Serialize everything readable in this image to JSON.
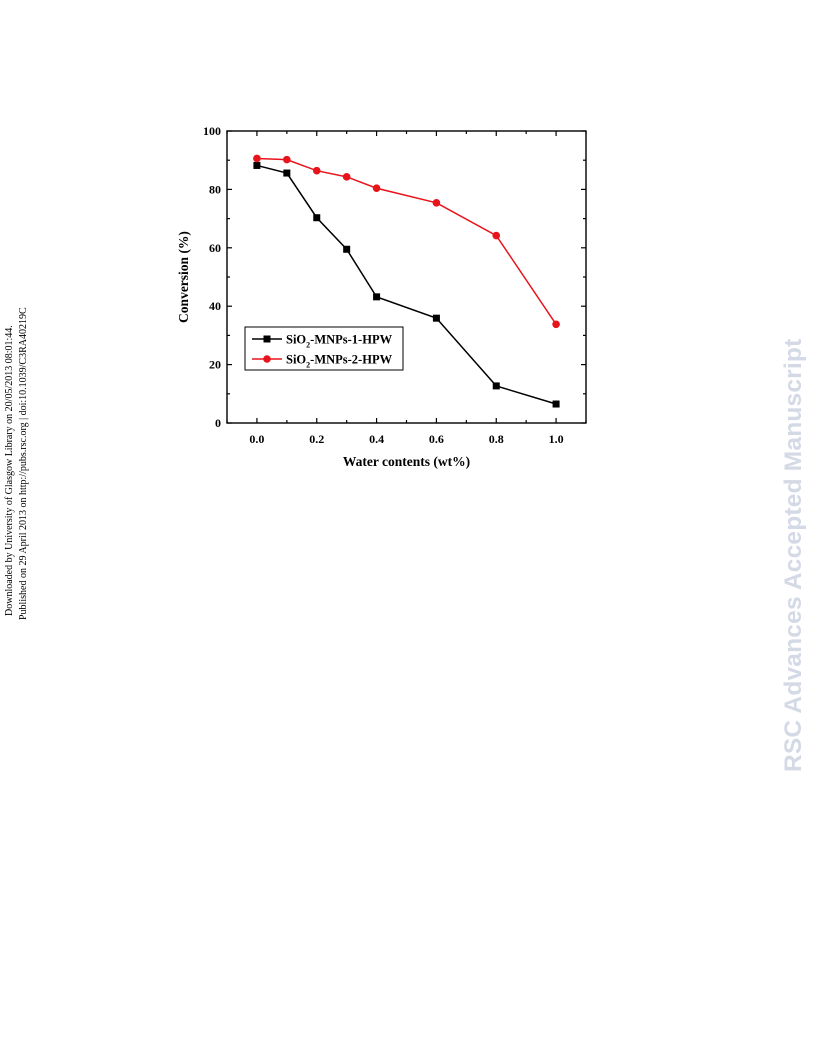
{
  "sidebar_text": {
    "line1": "Downloaded by University of Glasgow Library on 20/05/2013 08:01:44.",
    "line2": "Published on 29 April 2013 on http://pubs.rsc.org | doi:10.1039/C3RA40219C"
  },
  "watermark": {
    "text": "RSC Advances Accepted Manuscript",
    "color": "#d4d9e6"
  },
  "chart_data": {
    "type": "line",
    "xlabel": "Water contents (wt%)",
    "ylabel": "Conversion (%)",
    "xlim": [
      -0.1,
      1.1
    ],
    "ylim": [
      0,
      100
    ],
    "xticks": [
      0.0,
      0.2,
      0.4,
      0.6,
      0.8,
      1.0
    ],
    "xtick_labels": [
      "0.0",
      "0.2",
      "0.4",
      "0.6",
      "0.8",
      "1.0"
    ],
    "yticks": [
      0,
      20,
      40,
      60,
      80,
      100
    ],
    "ytick_labels": [
      "0",
      "20",
      "40",
      "60",
      "80",
      "100"
    ],
    "grid": false,
    "legend_position": "lower-left",
    "series": [
      {
        "name_main": "SiO",
        "name_sub": "2",
        "name_rest": "-MNPs-1-HPW",
        "color": "#000000",
        "marker": "square",
        "x": [
          0.0,
          0.1,
          0.2,
          0.3,
          0.4,
          0.6,
          0.8,
          1.0
        ],
        "y": [
          88.2,
          85.6,
          70.3,
          59.5,
          43.2,
          35.9,
          12.7,
          6.5
        ]
      },
      {
        "name_main": "SiO",
        "name_sub": "2",
        "name_rest": "-MNPs-2-HPW",
        "color": "#e8141c",
        "marker": "circle",
        "x": [
          0.0,
          0.1,
          0.2,
          0.3,
          0.4,
          0.6,
          0.8,
          1.0
        ],
        "y": [
          90.6,
          90.2,
          86.4,
          84.3,
          80.4,
          75.4,
          64.2,
          33.8
        ]
      }
    ]
  }
}
